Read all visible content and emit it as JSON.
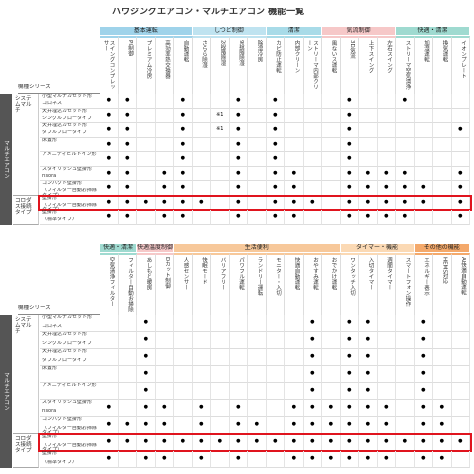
{
  "title": "ハウジングエアコン・マルチエアコン 機能一覧",
  "tables": [
    {
      "series_header": "機種シリーズ",
      "side_label": "マルチエアコン",
      "groups": [
        {
          "label": "基本運転",
          "columns": [
            "スイングコンプレッサー",
            "PI制御",
            "プレミアム冷房",
            "高効率熱交換器",
            "自動運転"
          ]
        },
        {
          "label": "しつど制御",
          "columns": [
            "さらら除湿",
            "2段階除湿",
            "9段階除湿",
            "除湿冷房"
          ]
        },
        {
          "label": "清潔",
          "columns": [
            "カビ防止運転",
            "内部クリーン",
            "ストリーマ内部クリーン"
          ]
        },
        {
          "label": "気流制御",
          "columns": [
            "風ないス運転",
            "3D気流",
            "上下スイング",
            "左右スイング"
          ]
        },
        {
          "label": "快適・清潔",
          "columns": [
            "ストリーマ空気清浄",
            "加湿運転",
            "換気運転",
            "イオンプレート"
          ]
        }
      ],
      "categories": [
        {
          "label": "システムマルチ",
          "rows": [
            {
              "name": "小型マルチカセット形",
              "detail": "コロネス",
              "cells": [
                "●",
                "●",
                null,
                null,
                "●",
                null,
                null,
                "●",
                null,
                "●",
                null,
                null,
                null,
                "●",
                null,
                null,
                "●",
                null,
                null,
                null
              ]
            },
            {
              "name": "天井埋込カセット形",
              "detail": "シングルフロータイプ",
              "cells": [
                "●",
                "●",
                null,
                null,
                "●",
                null,
                "※1",
                "●",
                null,
                "●",
                null,
                null,
                null,
                "●",
                null,
                null,
                null,
                null,
                null,
                null
              ]
            },
            {
              "name": "天井埋込カセット形",
              "detail": "ダブルフロータイプ",
              "cells": [
                "●",
                "●",
                null,
                null,
                "●",
                null,
                "※1",
                "●",
                null,
                "●",
                null,
                null,
                null,
                "●",
                null,
                null,
                null,
                null,
                null,
                "●"
              ]
            },
            {
              "name": "床置形",
              "cells": [
                "●",
                "●",
                null,
                null,
                "●",
                null,
                null,
                "●",
                null,
                "●",
                null,
                null,
                null,
                "●",
                null,
                null,
                null,
                null,
                null,
                null
              ]
            },
            {
              "name": "アメニティビルトイン形",
              "cells": [
                "●",
                "●",
                null,
                null,
                "●",
                null,
                null,
                "●",
                null,
                "●",
                null,
                null,
                null,
                "●",
                null,
                null,
                null,
                null,
                null,
                null
              ]
            },
            {
              "name": "スタイリッシュ壁掛形",
              "detail": "risora",
              "cells": [
                "●",
                "●",
                null,
                "●",
                "●",
                null,
                null,
                "●",
                null,
                "●",
                "●",
                null,
                null,
                "●",
                "●",
                "●",
                "●",
                null,
                null,
                "●"
              ]
            },
            {
              "name": "コンパクト壁掛形",
              "detail": "（フィルター自動お掃除タイプ）",
              "cells": [
                "●",
                "●",
                null,
                "●",
                "●",
                null,
                null,
                "●",
                null,
                "●",
                "●",
                null,
                null,
                "●",
                "●",
                "●",
                "●",
                "●",
                null,
                "●"
              ]
            }
          ]
        },
        {
          "label": "コロダス接続タイプ",
          "rows": [
            {
              "name": "壁掛形",
              "detail": "（フィルター自動お掃除タイプ）",
              "highlight": true,
              "cells": [
                "●",
                "●",
                "●",
                "●",
                "●",
                "●",
                null,
                "●",
                null,
                "●",
                "●",
                "●",
                null,
                "●",
                "●",
                "●",
                "●",
                "●",
                null,
                "●"
              ]
            },
            {
              "name": "壁掛形",
              "detail": "（標準タイプ）",
              "cells": [
                "●",
                "●",
                null,
                "●",
                "●",
                null,
                null,
                "●",
                null,
                "●",
                "●",
                null,
                null,
                "●",
                "●",
                "●",
                "●",
                null,
                null,
                "●"
              ]
            }
          ]
        }
      ]
    },
    {
      "series_header": "機種シリーズ",
      "side_label": "マルチエアコン",
      "groups": [
        {
          "label": "快適・清潔",
          "columns": [
            "空気清浄フィルター",
            "フィルター自動お掃除"
          ]
        },
        {
          "label": "快適温度制御",
          "columns": [
            "あしもと暖房",
            "Dカット制御"
          ]
        },
        {
          "label": "生活便利",
          "columns": [
            "人感センサー",
            "快眠モード",
            "バリアフリー",
            "パワフル運転",
            "ランドリー運転",
            "モニター・入切",
            "快適自動運転",
            "おやすみ運転",
            "おでかけ運転"
          ]
        },
        {
          "label": "タイマー・機能",
          "columns": [
            "ワンタッチ入切",
            "入切タイマー",
            "週間タイマー",
            "スマートフォン操作"
          ]
        },
        {
          "label": "その他の機能",
          "columns": [
            "エネルギー表示",
            "HEMS対応",
            "AI快適自動運転"
          ]
        }
      ],
      "categories": [
        {
          "label": "システムマルチ",
          "rows": [
            {
              "name": "小型マルチカセット形",
              "detail": "コロネス",
              "cells": [
                null,
                null,
                "●",
                null,
                null,
                null,
                null,
                null,
                null,
                null,
                null,
                "●",
                null,
                "●",
                "●",
                null,
                null,
                "●",
                null,
                null
              ]
            },
            {
              "name": "天井埋込カセット形",
              "detail": "シングルフロータイプ",
              "cells": [
                null,
                null,
                "●",
                null,
                null,
                null,
                null,
                null,
                null,
                null,
                null,
                "●",
                null,
                "●",
                "●",
                null,
                null,
                "●",
                null,
                null
              ]
            },
            {
              "name": "天井埋込カセット形",
              "detail": "ダブルフロータイプ",
              "cells": [
                null,
                null,
                "●",
                null,
                null,
                null,
                null,
                null,
                null,
                null,
                null,
                "●",
                null,
                "●",
                "●",
                null,
                null,
                "●",
                null,
                null
              ]
            },
            {
              "name": "床置形",
              "cells": [
                null,
                null,
                "●",
                null,
                null,
                null,
                null,
                null,
                null,
                null,
                null,
                "●",
                null,
                "●",
                "●",
                null,
                null,
                "●",
                null,
                null
              ]
            },
            {
              "name": "アメニティビルトイン形",
              "cells": [
                null,
                null,
                "●",
                null,
                null,
                null,
                null,
                null,
                null,
                null,
                null,
                "●",
                null,
                "●",
                "●",
                null,
                null,
                "●",
                null,
                null
              ]
            },
            {
              "name": "スタイリッシュ壁掛形",
              "detail": "risora",
              "cells": [
                "●",
                null,
                "●",
                "●",
                null,
                "●",
                null,
                "●",
                null,
                null,
                "●",
                "●",
                "●",
                "●",
                "●",
                "●",
                null,
                "●",
                "●",
                null
              ]
            },
            {
              "name": "コンパクト壁掛形",
              "detail": "（フィルター自動お掃除タイプ）",
              "cells": [
                "●",
                "●",
                "●",
                "●",
                null,
                "●",
                null,
                "●",
                "●",
                null,
                "●",
                "●",
                "●",
                "●",
                "●",
                "●",
                null,
                "●",
                "●",
                null
              ]
            }
          ]
        },
        {
          "label": "コロダス接続タイプ",
          "rows": [
            {
              "name": "壁掛形",
              "detail": "（フィルター自動お掃除タイプ）",
              "highlight": true,
              "cells": [
                "●",
                "●",
                "●",
                "●",
                "●",
                "●",
                "●",
                "●",
                "●",
                "●",
                "●",
                "●",
                "●",
                "●",
                "●",
                "●",
                "●",
                "●",
                "●",
                "●"
              ]
            },
            {
              "name": "壁掛形",
              "detail": "（標準タイプ）",
              "cells": [
                "●",
                null,
                "●",
                "●",
                null,
                "●",
                null,
                "●",
                null,
                null,
                "●",
                "●",
                "●",
                "●",
                "●",
                "●",
                null,
                "●",
                "●",
                null
              ]
            }
          ]
        }
      ]
    }
  ]
}
